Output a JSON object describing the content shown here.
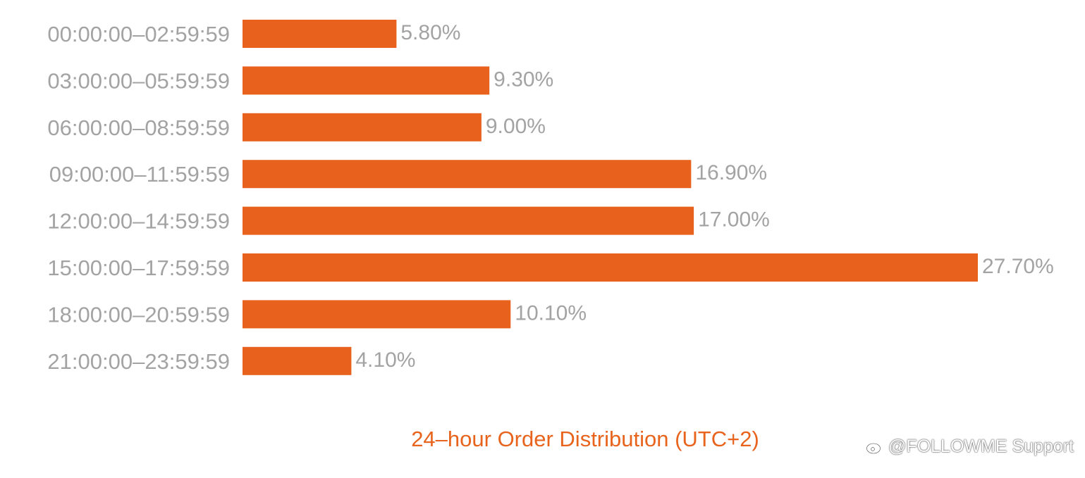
{
  "chart_data": {
    "type": "bar",
    "orientation": "horizontal",
    "title": "24–hour Order Distribution (UTC+2)",
    "categories": [
      "00:00:00–02:59:59",
      "03:00:00–05:59:59",
      "06:00:00–08:59:59",
      "09:00:00–11:59:59",
      "12:00:00–14:59:59",
      "15:00:00–17:59:59",
      "18:00:00–20:59:59",
      "21:00:00–23:59:59"
    ],
    "values": [
      5.8,
      9.3,
      9.0,
      16.9,
      17.0,
      27.7,
      10.1,
      4.1
    ],
    "value_labels": [
      "5.80%",
      "9.30%",
      "9.00%",
      "16.90%",
      "17.00%",
      "27.70%",
      "10.10%",
      "4.10%"
    ],
    "xlim": [
      0,
      27.7
    ],
    "grid": false,
    "legend": "none",
    "bar_color": "#e8621e"
  },
  "watermark": {
    "text": "@FOLLOWME Support",
    "icon": "weibo-icon"
  }
}
